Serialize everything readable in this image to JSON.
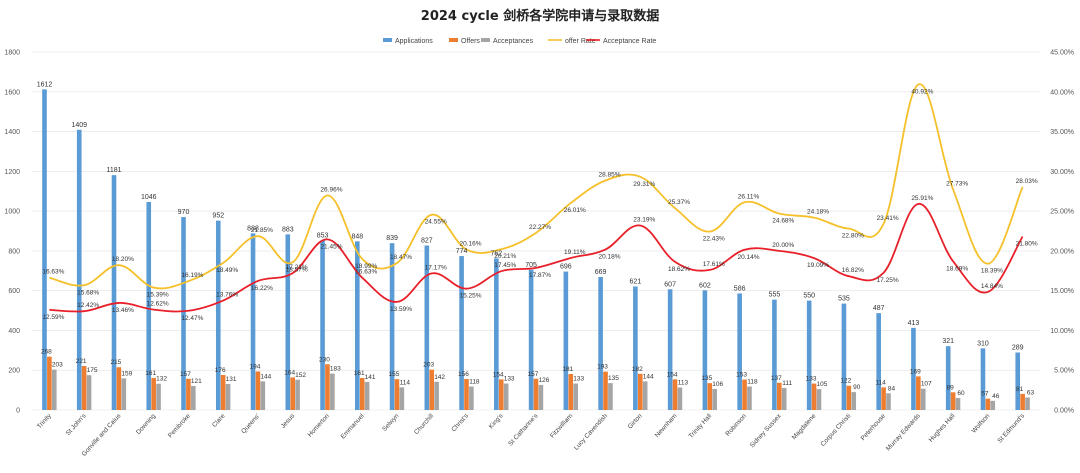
{
  "chart_data": {
    "type": "bar",
    "title": "2024 cycle 剑桥各学院申请与录取数据",
    "categories": [
      "Trinity",
      "St John's",
      "Gonville and Caius",
      "Downing",
      "Pembroke",
      "Clare",
      "Queens'",
      "Jesus",
      "Homerton",
      "Emmanuel",
      "Selwyn",
      "Churchill",
      "Christ's",
      "King's",
      "St Catharine's",
      "Fitzwilliam",
      "Lucy Cavendish",
      "Girton",
      "Newnham",
      "Trinity Hall",
      "Robinson",
      "Sidney Sussex",
      "Magdalene",
      "Corpus Christi",
      "Peterhouse",
      "Murray Edwards",
      "Hughes Hall",
      "Wolfson",
      "St Edmund's"
    ],
    "series": [
      {
        "name": "Applications",
        "type": "bar",
        "axis": "left",
        "color": "#5b9bd5",
        "values": [
          1612,
          1409,
          1181,
          1046,
          970,
          952,
          888,
          883,
          853,
          848,
          839,
          827,
          774,
          762,
          705,
          696,
          669,
          621,
          607,
          602,
          586,
          555,
          550,
          535,
          487,
          413,
          321,
          310,
          289
        ]
      },
      {
        "name": "Offers",
        "type": "bar",
        "axis": "left",
        "color": "#ed7d31",
        "values": [
          268,
          221,
          215,
          161,
          157,
          176,
          194,
          164,
          230,
          161,
          155,
          203,
          156,
          154,
          157,
          181,
          193,
          182,
          154,
          135,
          153,
          137,
          133,
          122,
          114,
          169,
          89,
          57,
          81
        ]
      },
      {
        "name": "Acceptances",
        "type": "bar",
        "axis": "left",
        "color": "#a5a5a5",
        "values": [
          203,
          175,
          159,
          132,
          121,
          131,
          144,
          152,
          183,
          141,
          114,
          142,
          118,
          133,
          126,
          133,
          135,
          144,
          113,
          106,
          118,
          111,
          105,
          90,
          84,
          107,
          60,
          46,
          63
        ]
      },
      {
        "name": "offer Rate",
        "type": "line",
        "axis": "right",
        "color": "#f5c02a",
        "values": [
          16.63,
          15.68,
          18.2,
          15.39,
          16.19,
          18.49,
          21.85,
          18.57,
          26.96,
          18.99,
          18.47,
          24.55,
          20.16,
          20.21,
          22.27,
          26.01,
          28.85,
          29.31,
          25.37,
          22.43,
          26.11,
          24.68,
          24.18,
          22.8,
          23.41,
          40.92,
          27.73,
          18.39,
          28.03
        ],
        "labels": [
          "16.63%",
          "15.68%",
          "18.20%",
          "15.39%",
          "16.19%",
          "18.49%",
          "21.85%",
          "18.57%",
          "26.96%",
          "18.99%",
          "18.47%",
          "24.55%",
          "20.16%",
          "20.21%",
          "22.27%",
          "26.01%",
          "28.85%",
          "29.31%",
          "25.37%",
          "22.43%",
          "26.11%",
          "24.68%",
          "24.18%",
          "22.80%",
          "23.41%",
          "40.92%",
          "27.73%",
          "18.39%",
          "28.03%"
        ]
      },
      {
        "name": "Acceptance Rate",
        "type": "line",
        "axis": "right",
        "color": "#e8202a",
        "values": [
          12.59,
          12.42,
          13.46,
          12.62,
          12.47,
          13.76,
          16.22,
          17.21,
          21.45,
          16.63,
          13.59,
          17.17,
          15.25,
          17.45,
          17.87,
          19.11,
          20.18,
          23.19,
          18.62,
          17.61,
          20.14,
          20.0,
          19.09,
          16.82,
          17.25,
          25.91,
          18.69,
          14.84,
          21.8
        ],
        "labels": [
          "12.59%",
          "12.42%",
          "13.46%",
          "12.62%",
          "12.47%",
          "13.76%",
          "16.22%",
          "17.21%",
          "21.45%",
          "16.63%",
          "13.59%",
          "17.17%",
          "15.25%",
          "17.45%",
          "17.87%",
          "19.11%",
          "20.18%",
          "23.19%",
          "18.62%",
          "17.61%",
          "20.14%",
          "20.00%",
          "19.09%",
          "16.82%",
          "17.25%",
          "25.91%",
          "18.69%",
          "14.84%",
          "21.80%"
        ]
      }
    ],
    "ylim_left": [
      0,
      1800
    ],
    "yticks_left": [
      "0",
      "200",
      "400",
      "600",
      "800",
      "1000",
      "1200",
      "1400",
      "1600",
      "1800"
    ],
    "ylim_right": [
      0,
      45
    ],
    "yticks_right": [
      "0.00%",
      "5.00%",
      "10.00%",
      "15.00%",
      "20.00%",
      "25.00%",
      "30.00%",
      "35.00%",
      "40.00%",
      "45.00%"
    ],
    "legend_position": "top",
    "grid": true
  }
}
